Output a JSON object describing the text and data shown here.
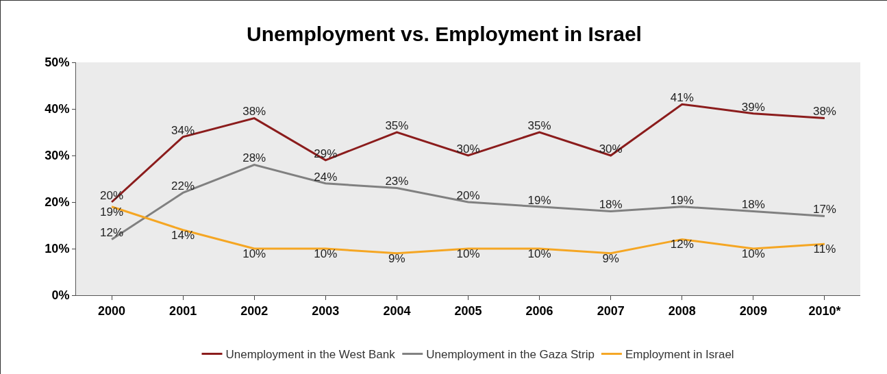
{
  "chart_data": {
    "type": "line",
    "title": "Unemployment vs. Employment in Israel",
    "categories": [
      "2000",
      "2001",
      "2002",
      "2003",
      "2004",
      "2005",
      "2006",
      "2007",
      "2008",
      "2009",
      "2010*"
    ],
    "series": [
      {
        "name": "Unemployment in the West Bank",
        "color": "#8b1c1c",
        "values": [
          20,
          34,
          38,
          29,
          35,
          30,
          35,
          30,
          41,
          39,
          38
        ],
        "value_labels": [
          "20%",
          "34%",
          "38%",
          "29%",
          "35%",
          "30%",
          "35%",
          "30%",
          "41%",
          "39%",
          "38%"
        ]
      },
      {
        "name": "Unemployment in the Gaza Strip",
        "color": "#808080",
        "values": [
          12,
          22,
          28,
          24,
          23,
          20,
          19,
          18,
          19,
          18,
          17
        ],
        "value_labels": [
          "12%",
          "22%",
          "28%",
          "24%",
          "23%",
          "20%",
          "19%",
          "18%",
          "19%",
          "18%",
          "17%"
        ]
      },
      {
        "name": "Employment in Israel",
        "color": "#f5a623",
        "values": [
          19,
          14,
          10,
          10,
          9,
          10,
          10,
          9,
          12,
          10,
          11
        ],
        "value_labels": [
          "19%",
          "14%",
          "10%",
          "10%",
          "9%",
          "10%",
          "10%",
          "9%",
          "12%",
          "10%",
          "11%"
        ]
      }
    ],
    "ylim": [
      0,
      50
    ],
    "yticks": [
      {
        "value": 0,
        "label": "0%"
      },
      {
        "value": 10,
        "label": "10%"
      },
      {
        "value": 20,
        "label": "20%"
      },
      {
        "value": 30,
        "label": "30%"
      },
      {
        "value": 40,
        "label": "40%"
      },
      {
        "value": 50,
        "label": "50%"
      }
    ],
    "grid": false,
    "legend": "bottom",
    "marker": "none",
    "line_style": "solid"
  }
}
